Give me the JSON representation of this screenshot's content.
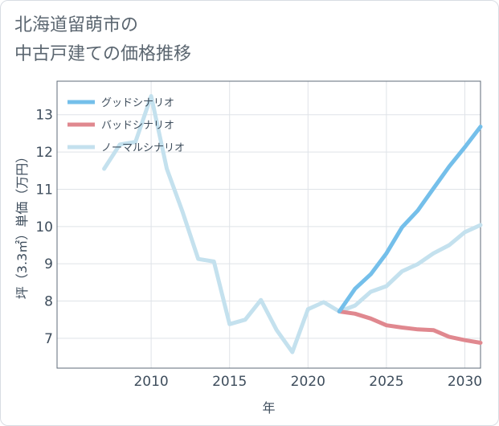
{
  "title_line1": "北海道留萌市の",
  "title_line2": "中古戸建ての価格推移",
  "chart_data": {
    "type": "line",
    "xlabel": "年",
    "ylabel": "坪（3.3㎡）単価（万円）",
    "xlim": [
      2004,
      2031
    ],
    "ylim": [
      6.2,
      13.9
    ],
    "x_ticks": [
      2010,
      2015,
      2020,
      2025,
      2030
    ],
    "y_ticks": [
      7,
      8,
      9,
      10,
      11,
      12,
      13
    ],
    "grid": true,
    "legend_position": "top-left",
    "series": [
      {
        "name": "グッドシナリオ",
        "color": "#74bfea",
        "x": [
          2022,
          2023,
          2024,
          2025,
          2026,
          2027,
          2028,
          2029,
          2030,
          2031
        ],
        "y": [
          7.72,
          8.33,
          8.72,
          9.28,
          9.98,
          10.43,
          11.02,
          11.61,
          12.13,
          12.68
        ]
      },
      {
        "name": "バッドシナリオ",
        "color": "#e0888f",
        "x": [
          2022,
          2023,
          2024,
          2025,
          2026,
          2027,
          2028,
          2029,
          2030,
          2031
        ],
        "y": [
          7.72,
          7.66,
          7.53,
          7.35,
          7.29,
          7.24,
          7.22,
          7.04,
          6.95,
          6.88
        ]
      },
      {
        "name": "ノーマルシナリオ",
        "color": "#c4e1ee",
        "x": [
          2007,
          2008,
          2009,
          2010,
          2011,
          2012,
          2013,
          2014,
          2015,
          2016,
          2017,
          2018,
          2019,
          2020,
          2021,
          2022,
          2023,
          2024,
          2025,
          2026,
          2027,
          2028,
          2029,
          2030,
          2031
        ],
        "y": [
          11.55,
          12.2,
          12.27,
          13.5,
          11.55,
          10.4,
          9.13,
          9.06,
          7.38,
          7.5,
          8.03,
          7.22,
          6.63,
          7.78,
          7.97,
          7.72,
          7.88,
          8.25,
          8.4,
          8.8,
          8.99,
          9.28,
          9.5,
          9.85,
          10.04
        ]
      }
    ]
  }
}
